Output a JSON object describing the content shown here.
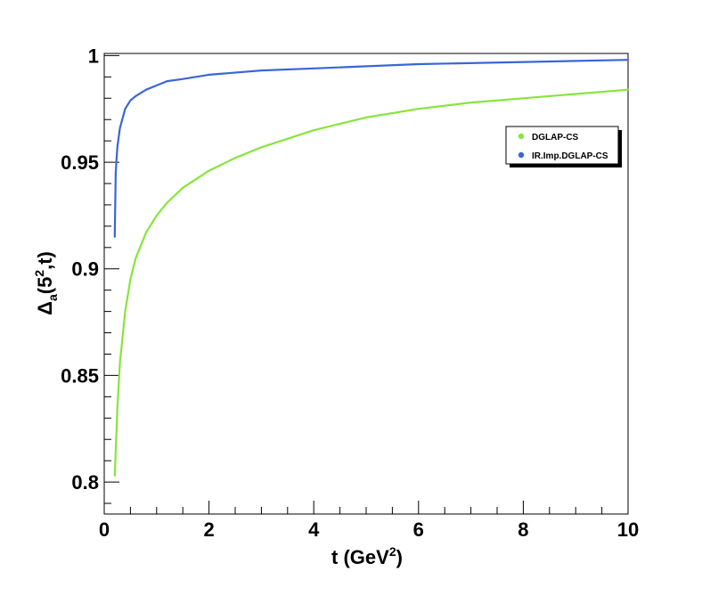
{
  "chart_data": {
    "type": "line",
    "xlabel": {
      "main": "t (GeV",
      "sup": "2",
      "close": ")"
    },
    "ylabel": {
      "delta": "Δ",
      "sub": "a",
      "pre": "(5",
      "sup": "2",
      "post": ",t)"
    },
    "xlim": [
      0,
      10
    ],
    "ylim": [
      0.785,
      1.001
    ],
    "x_ticks": [
      0,
      2,
      4,
      6,
      8,
      10
    ],
    "x_tick_labels": [
      "0",
      "2",
      "4",
      "6",
      "8",
      "10"
    ],
    "y_ticks": [
      0.8,
      0.85,
      0.9,
      0.95,
      1.0
    ],
    "y_tick_labels": [
      "0.8",
      "0.85",
      "0.9",
      "0.95",
      "1"
    ],
    "grid": false,
    "legend_position": "top-right",
    "series": [
      {
        "name": "DGLAP-CS",
        "color": "#88e53c",
        "x": [
          0.2,
          0.25,
          0.3,
          0.4,
          0.5,
          0.6,
          0.8,
          1.0,
          1.2,
          1.5,
          2.0,
          2.5,
          3.0,
          4.0,
          5.0,
          6.0,
          7.0,
          8.0,
          9.0,
          10.0
        ],
        "y": [
          0.803,
          0.834,
          0.856,
          0.88,
          0.895,
          0.905,
          0.917,
          0.925,
          0.931,
          0.938,
          0.946,
          0.952,
          0.957,
          0.965,
          0.971,
          0.975,
          0.978,
          0.98,
          0.982,
          0.984
        ]
      },
      {
        "name": "IR.Imp.DGLAP-CS",
        "color": "#3a66d6",
        "x": [
          0.2,
          0.22,
          0.25,
          0.3,
          0.4,
          0.5,
          0.6,
          0.8,
          1.0,
          1.2,
          1.5,
          2.0,
          3.0,
          4.0,
          6.0,
          8.0,
          10.0
        ],
        "y": [
          0.915,
          0.945,
          0.957,
          0.966,
          0.975,
          0.979,
          0.981,
          0.984,
          0.986,
          0.988,
          0.989,
          0.991,
          0.993,
          0.994,
          0.996,
          0.997,
          0.998
        ]
      }
    ]
  }
}
